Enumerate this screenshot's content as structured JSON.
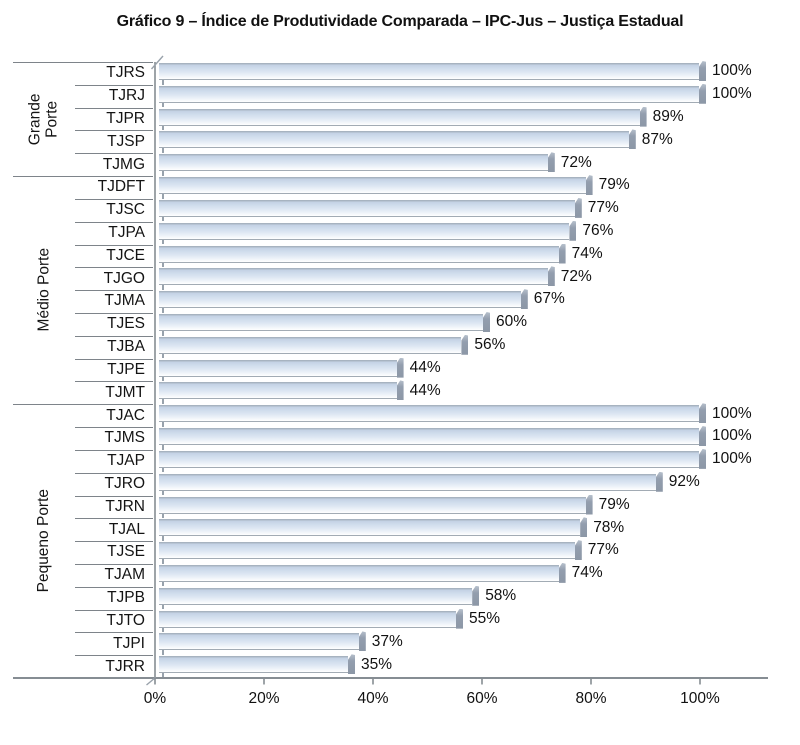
{
  "title": "Gráfico 9 – Índice de Produtividade Comparada – IPC-Jus – Justiça Estadual",
  "chart_data": {
    "type": "bar",
    "orientation": "horizontal",
    "title": "Gráfico 9 – Índice de Produtividade Comparada – IPC-Jus – Justiça Estadual",
    "xlabel": "",
    "ylabel": "",
    "xlim": [
      0,
      100
    ],
    "x_tick_labels": [
      "0%",
      "20%",
      "40%",
      "60%",
      "80%",
      "100%"
    ],
    "x_tick_values": [
      0,
      20,
      40,
      60,
      80,
      100
    ],
    "value_suffix": "%",
    "grid": false,
    "legend": "none",
    "groups": [
      {
        "label": "Grande Porte",
        "categories": [
          "TJRS",
          "TJRJ",
          "TJPR",
          "TJSP",
          "TJMG"
        ],
        "values": [
          100,
          100,
          89,
          87,
          72
        ],
        "value_labels": [
          "100%",
          "100%",
          "89%",
          "87%",
          "72%"
        ]
      },
      {
        "label": "Médio Porte",
        "categories": [
          "TJDFT",
          "TJSC",
          "TJPA",
          "TJCE",
          "TJGO",
          "TJMA",
          "TJES",
          "TJBA",
          "TJPE",
          "TJMT"
        ],
        "values": [
          79,
          77,
          76,
          74,
          72,
          67,
          60,
          56,
          44,
          44
        ],
        "value_labels": [
          "79%",
          "77%",
          "76%",
          "74%",
          "72%",
          "67%",
          "60%",
          "56%",
          "44%",
          "44%"
        ]
      },
      {
        "label": "Pequeno Porte",
        "categories": [
          "TJAC",
          "TJMS",
          "TJAP",
          "TJRO",
          "TJRN",
          "TJAL",
          "TJSE",
          "TJAM",
          "TJPB",
          "TJTO",
          "TJPI",
          "TJRR"
        ],
        "values": [
          100,
          100,
          100,
          92,
          79,
          78,
          77,
          74,
          58,
          55,
          37,
          35
        ],
        "value_labels": [
          "100%",
          "100%",
          "100%",
          "92%",
          "79%",
          "78%",
          "77%",
          "74%",
          "58%",
          "55%",
          "37%",
          "35%"
        ]
      }
    ],
    "colors": {
      "bar_fill": "#dce6f2",
      "bar_top_edge": "#a7b3c0",
      "bar_end_cap": "#8c97a6",
      "axis_line": "#848b91",
      "separator_line": "#7e848a",
      "text": "#111111",
      "background": "#ffffff"
    }
  }
}
